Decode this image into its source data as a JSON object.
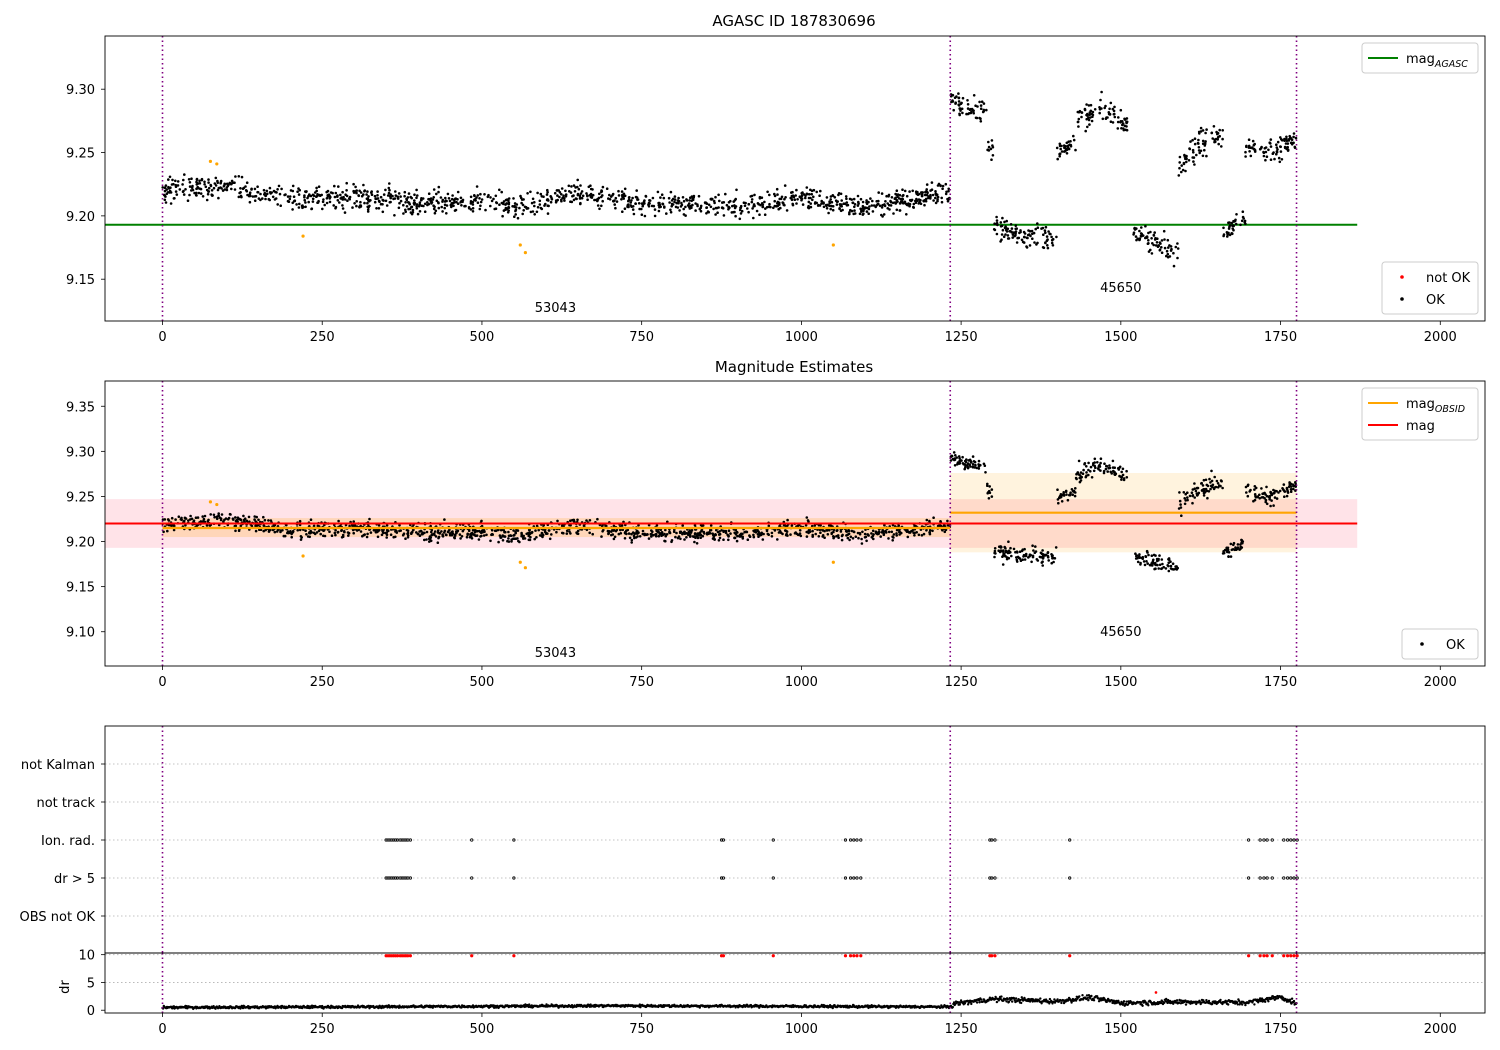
{
  "chart_data": [
    {
      "type": "scatter",
      "title": "AGASC ID 187830696",
      "xlim": [
        -90,
        2070
      ],
      "ylim": [
        9.117,
        9.342
      ],
      "xticks": [
        "0",
        "250",
        "500",
        "750",
        "1000",
        "1250",
        "1500",
        "1750",
        "2000"
      ],
      "yticks": [
        "9.15",
        "9.20",
        "9.25",
        "9.30"
      ],
      "obsid_boundaries": [
        0,
        1233,
        1775
      ],
      "obsid_labels": [
        {
          "text": "53043",
          "x": 615,
          "y": 9.124
        },
        {
          "text": "45650",
          "x": 1500,
          "y": 9.14
        }
      ],
      "series": [
        {
          "name": "mag_AGASC",
          "kind": "line",
          "color": "#008000",
          "x": [
            -90,
            1870
          ],
          "y": [
            9.193,
            9.193
          ]
        },
        {
          "name": "not OK",
          "kind": "points",
          "color": "#ff0000"
        },
        {
          "name": "OK",
          "kind": "points",
          "color": "#000000"
        },
        {
          "kind": "points",
          "color": "#ffa500",
          "x": [
            75,
            85,
            220,
            560,
            568,
            1050
          ],
          "y": [
            9.243,
            9.241,
            9.184,
            9.177,
            9.171,
            9.177
          ]
        }
      ],
      "ok_segments": [
        {
          "x": [
            0,
            1233
          ],
          "profile": [
            [
              0,
              9.22
            ],
            [
              100,
              9.224
            ],
            [
              200,
              9.212
            ],
            [
              300,
              9.215
            ],
            [
              400,
              9.21
            ],
            [
              500,
              9.212
            ],
            [
              560,
              9.206
            ],
            [
              640,
              9.218
            ],
            [
              750,
              9.21
            ],
            [
              900,
              9.208
            ],
            [
              1000,
              9.215
            ],
            [
              1100,
              9.208
            ],
            [
              1233,
              9.218
            ]
          ],
          "scatter": 0.009
        },
        {
          "x": [
            1233,
            1290
          ],
          "profile": [
            [
              1233,
              9.292
            ],
            [
              1290,
              9.282
            ]
          ],
          "scatter": 0.008
        },
        {
          "x": [
            1290,
            1300
          ],
          "profile": [
            [
              1290,
              9.26
            ],
            [
              1300,
              9.255
            ]
          ],
          "scatter": 0.01
        },
        {
          "x": [
            1300,
            1400
          ],
          "profile": [
            [
              1300,
              9.19
            ],
            [
              1350,
              9.185
            ],
            [
              1400,
              9.182
            ]
          ],
          "scatter": 0.01
        },
        {
          "x": [
            1400,
            1430
          ],
          "profile": [
            [
              1400,
              9.25
            ],
            [
              1430,
              9.255
            ]
          ],
          "scatter": 0.007
        },
        {
          "x": [
            1430,
            1510
          ],
          "profile": [
            [
              1430,
              9.275
            ],
            [
              1470,
              9.285
            ],
            [
              1510,
              9.272
            ]
          ],
          "scatter": 0.009
        },
        {
          "x": [
            1520,
            1590
          ],
          "profile": [
            [
              1520,
              9.186
            ],
            [
              1555,
              9.178
            ],
            [
              1590,
              9.17
            ]
          ],
          "scatter": 0.009
        },
        {
          "x": [
            1590,
            1660
          ],
          "profile": [
            [
              1590,
              9.24
            ],
            [
              1625,
              9.258
            ],
            [
              1660,
              9.265
            ]
          ],
          "scatter": 0.011
        },
        {
          "x": [
            1660,
            1695
          ],
          "profile": [
            [
              1660,
              9.186
            ],
            [
              1695,
              9.198
            ]
          ],
          "scatter": 0.008
        },
        {
          "x": [
            1695,
            1775
          ],
          "profile": [
            [
              1695,
              9.255
            ],
            [
              1735,
              9.25
            ],
            [
              1775,
              9.262
            ]
          ],
          "scatter": 0.009
        }
      ],
      "legends": [
        {
          "position": "upper right",
          "entries": [
            {
              "label": "mag",
              "sub": "AGASC",
              "marker": "line",
              "color": "#008000"
            }
          ]
        },
        {
          "position": "lower right",
          "entries": [
            {
              "label": "not OK",
              "marker": "dot",
              "color": "#ff0000"
            },
            {
              "label": "OK",
              "marker": "dot",
              "color": "#000000"
            }
          ]
        }
      ]
    },
    {
      "type": "scatter",
      "title": "Magnitude Estimates",
      "xlim": [
        -90,
        2070
      ],
      "ylim": [
        9.062,
        9.378
      ],
      "xticks": [
        "0",
        "250",
        "500",
        "750",
        "1000",
        "1250",
        "1500",
        "1750",
        "2000"
      ],
      "yticks": [
        "9.10",
        "9.15",
        "9.20",
        "9.25",
        "9.30",
        "9.35"
      ],
      "obsid_boundaries": [
        0,
        1233,
        1775
      ],
      "obsid_labels": [
        {
          "text": "53043",
          "x": 615,
          "y": 9.072
        },
        {
          "text": "45650",
          "x": 1500,
          "y": 9.095
        }
      ],
      "bands": [
        {
          "x": [
            -90,
            1870
          ],
          "y": [
            9.193,
            9.247
          ],
          "color": "#ffc0cb",
          "opacity": 0.45
        },
        {
          "x": [
            0,
            1233
          ],
          "y": [
            9.205,
            9.226
          ],
          "color": "#ffa500",
          "opacity": 0.2
        },
        {
          "x": [
            1233,
            1775
          ],
          "y": [
            9.188,
            9.276
          ],
          "color": "#ffa500",
          "opacity": 0.13
        }
      ],
      "series": [
        {
          "name": "mag_OBSID",
          "kind": "steps",
          "color": "#ffa500",
          "segments": [
            {
              "x": [
                0,
                1233
              ],
              "y": 9.215
            },
            {
              "x": [
                1233,
                1775
              ],
              "y": 9.232
            }
          ]
        },
        {
          "name": "mag",
          "kind": "line",
          "color": "#ff0000",
          "x": [
            -90,
            1870
          ],
          "y": [
            9.22,
            9.22
          ]
        },
        {
          "name": "OK",
          "kind": "points",
          "color": "#000000"
        },
        {
          "kind": "points",
          "color": "#ffa500",
          "x": [
            75,
            85,
            220,
            560,
            568,
            1050
          ],
          "y": [
            9.244,
            9.241,
            9.184,
            9.177,
            9.171,
            9.177
          ]
        }
      ],
      "legends": [
        {
          "position": "upper right",
          "entries": [
            {
              "label": "mag",
              "sub": "OBSID",
              "marker": "line",
              "color": "#ffa500"
            },
            {
              "label": "mag",
              "marker": "line",
              "color": "#ff0000"
            }
          ]
        },
        {
          "position": "lower right",
          "entries": [
            {
              "label": "OK",
              "marker": "dot",
              "color": "#000000"
            }
          ]
        }
      ]
    },
    {
      "type": "scatter",
      "title": "",
      "xlim": [
        -90,
        2070
      ],
      "ycategories": [
        "not Kalman",
        "not track",
        "Ion. rad.",
        "dr > 5",
        "OBS not OK"
      ],
      "obsid_boundaries": [
        0,
        1233,
        1775
      ],
      "flag_times": [
        350,
        353,
        356,
        359,
        362,
        365,
        368,
        372,
        375,
        378,
        381,
        384,
        388,
        484,
        550,
        875,
        878,
        956,
        1069,
        1077,
        1082,
        1087,
        1093,
        1295,
        1298,
        1303,
        1420,
        1700,
        1718,
        1724,
        1729,
        1737,
        1755,
        1761,
        1766,
        1771,
        1776
      ],
      "flag_rows": [
        "Ion. rad.",
        "dr > 5"
      ]
    },
    {
      "type": "scatter",
      "title": "",
      "ylabel": "dr",
      "xlim": [
        -90,
        2070
      ],
      "ylim": [
        -0.5,
        10.3
      ],
      "xticks": [
        "0",
        "250",
        "500",
        "750",
        "1000",
        "1250",
        "1500",
        "1750",
        "2000"
      ],
      "yticks": [
        "0",
        "5",
        "10"
      ],
      "obsid_boundaries": [
        0,
        1233,
        1775
      ],
      "series": [
        {
          "name": "dr",
          "kind": "points",
          "color": "#000000",
          "profile": [
            [
              0,
              0.5
            ],
            [
              300,
              0.6
            ],
            [
              500,
              0.7
            ],
            [
              700,
              0.8
            ],
            [
              1000,
              0.7
            ],
            [
              1233,
              0.6
            ],
            [
              1240,
              1.2
            ],
            [
              1300,
              2.0
            ],
            [
              1400,
              1.6
            ],
            [
              1450,
              2.3
            ],
            [
              1500,
              1.3
            ],
            [
              1600,
              1.5
            ],
            [
              1700,
              1.4
            ],
            [
              1750,
              2.4
            ],
            [
              1775,
              1.2
            ]
          ]
        },
        {
          "name": "flagged",
          "kind": "points",
          "color": "#ff0000",
          "y": 9.8
        }
      ]
    }
  ]
}
